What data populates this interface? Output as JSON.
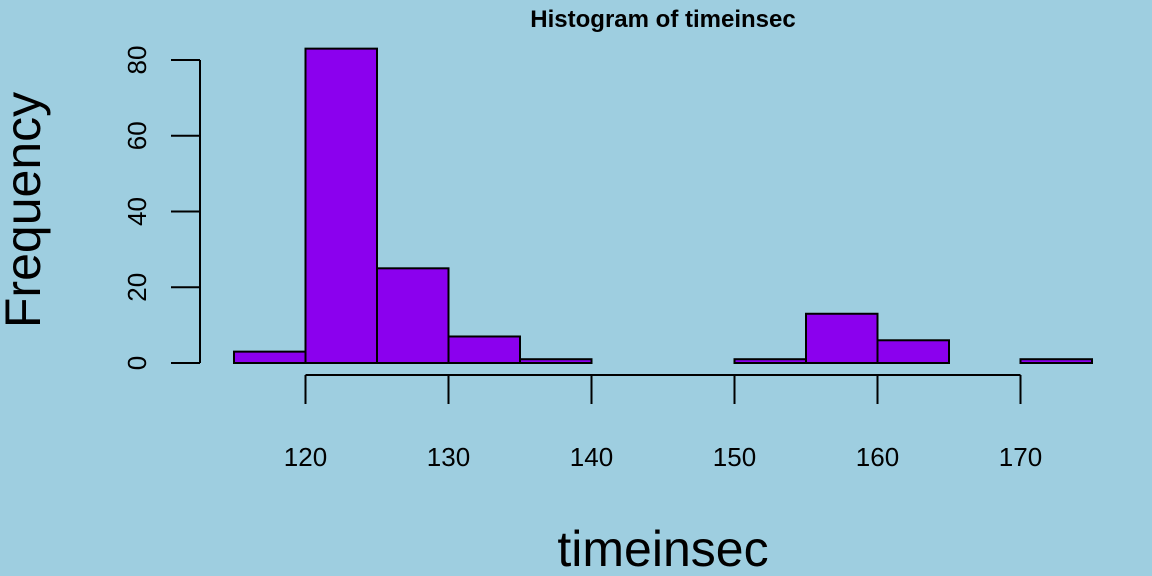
{
  "chart_data": {
    "type": "bar",
    "title": "Histogram of timeinsec",
    "xlabel": "timeinsec",
    "ylabel": "Frequency",
    "bins": [
      {
        "from": 115,
        "to": 120,
        "count": 3
      },
      {
        "from": 120,
        "to": 125,
        "count": 83
      },
      {
        "from": 125,
        "to": 130,
        "count": 25
      },
      {
        "from": 130,
        "to": 135,
        "count": 7
      },
      {
        "from": 135,
        "to": 140,
        "count": 1
      },
      {
        "from": 140,
        "to": 145,
        "count": 0
      },
      {
        "from": 145,
        "to": 150,
        "count": 0
      },
      {
        "from": 150,
        "to": 155,
        "count": 1
      },
      {
        "from": 155,
        "to": 160,
        "count": 13
      },
      {
        "from": 160,
        "to": 165,
        "count": 6
      },
      {
        "from": 165,
        "to": 170,
        "count": 0
      },
      {
        "from": 170,
        "to": 175,
        "count": 1
      }
    ],
    "x_ticks": [
      "120",
      "130",
      "140",
      "150",
      "160",
      "170"
    ],
    "y_ticks": [
      "0",
      "20",
      "40",
      "60",
      "80"
    ],
    "xlim": [
      115,
      175
    ],
    "ylim": [
      0,
      83
    ],
    "grid": false,
    "legend": "none",
    "bar_color": "#8b00ee",
    "background_color": "#9ecee0"
  }
}
